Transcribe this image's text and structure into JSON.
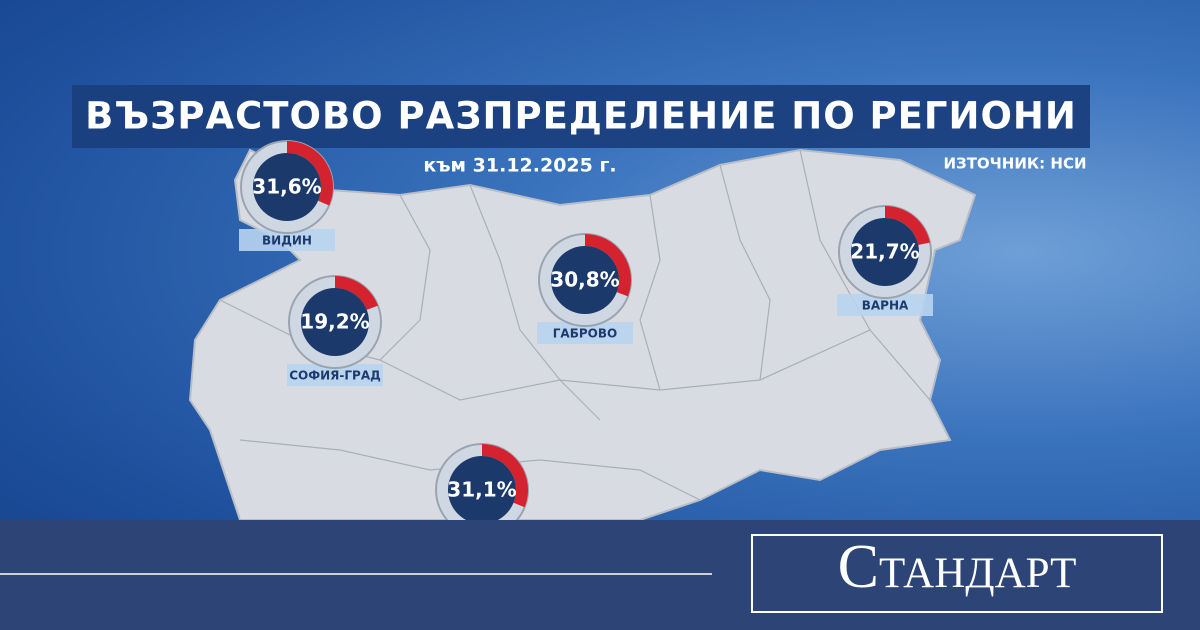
{
  "header": {
    "title": "ВЪЗРАСТОВО РАЗПРЕДЕЛЕНИЕ ПО РЕГИОНИ",
    "date": "към 31.12.2025 г.",
    "source": "ИЗТОЧНИК: НСИ"
  },
  "regions": [
    {
      "name": "ВИДИН",
      "value": 31.6,
      "value_label": "31,6%"
    },
    {
      "name": "СОФИЯ-ГРАД",
      "value": 19.2,
      "value_label": "19,2%"
    },
    {
      "name": "ГАБРОВО",
      "value": 30.8,
      "value_label": "30,8%"
    },
    {
      "name": "ВАРНА",
      "value": 21.7,
      "value_label": "21,7%"
    },
    {
      "value": 31.1,
      "value_label": "31,1%"
    }
  ],
  "footer": {
    "brand": "Стандарт"
  }
}
